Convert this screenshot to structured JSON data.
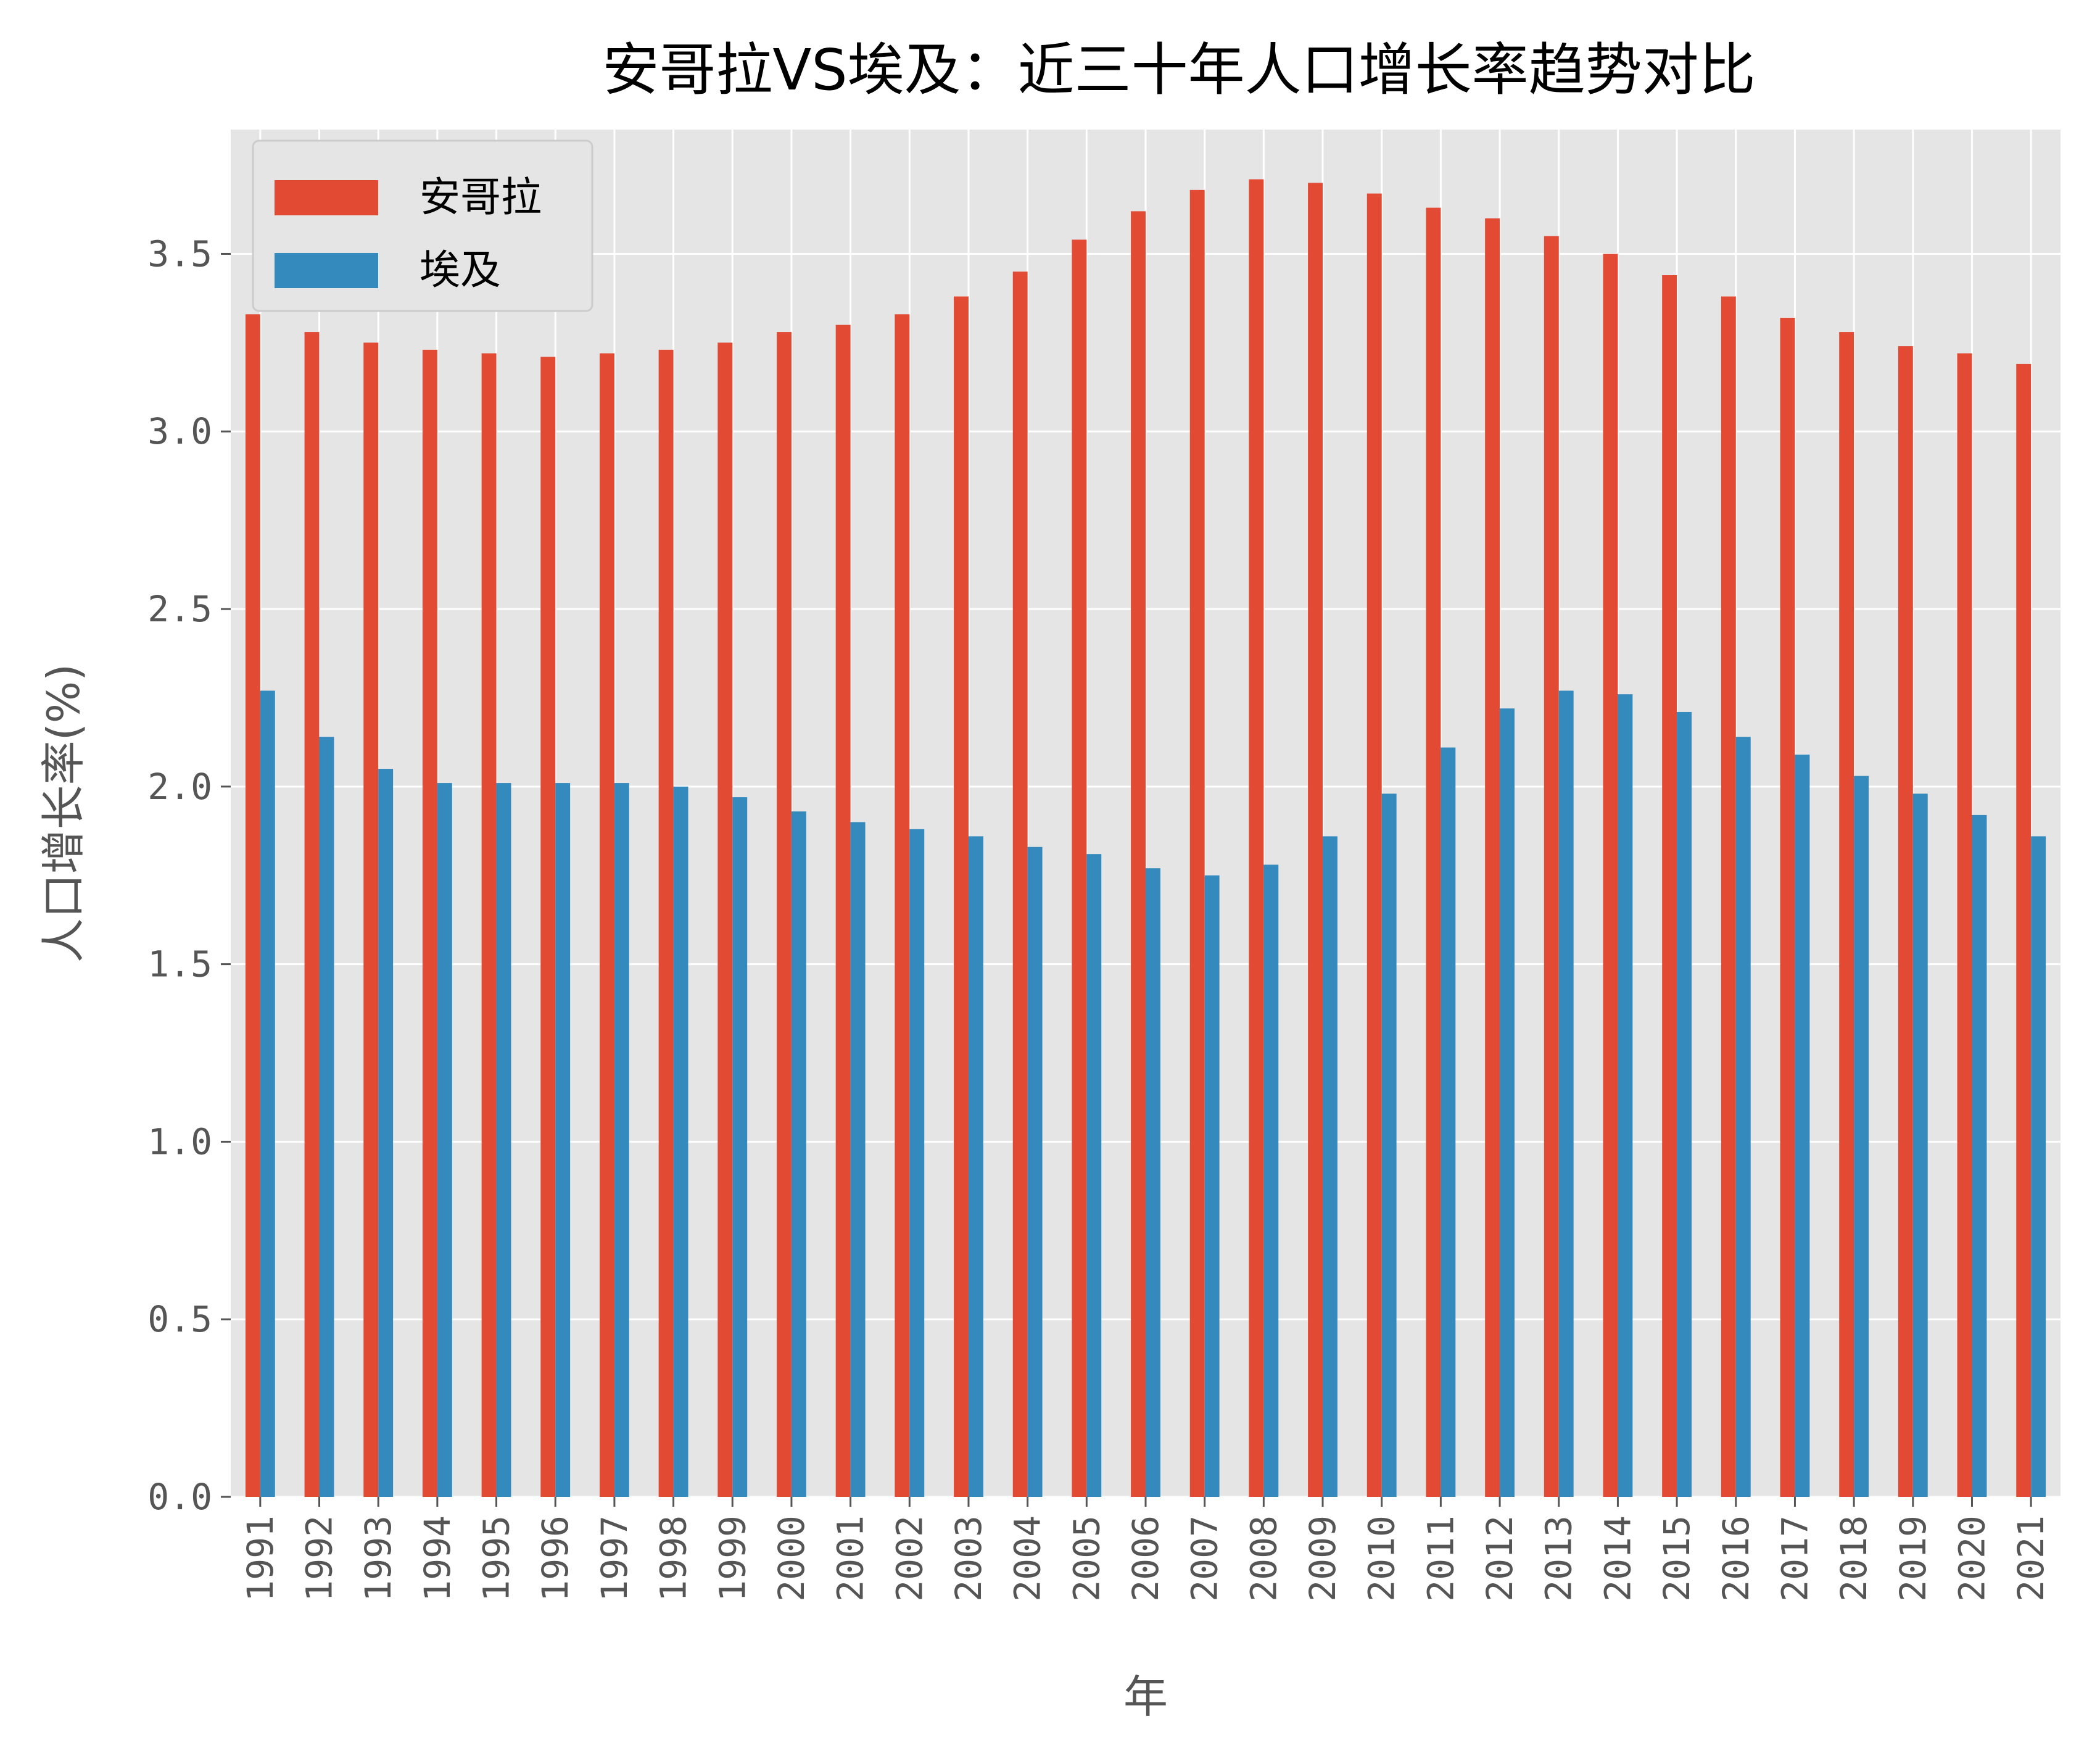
{
  "chart_data": {
    "type": "bar",
    "title": "安哥拉VS埃及：近三十年人口增长率趋势对比",
    "xlabel": "年",
    "ylabel": "人口增长率(%)",
    "ylim": [
      0,
      3.85
    ],
    "yticks": [
      "0.0",
      "0.5",
      "1.0",
      "1.5",
      "2.0",
      "2.5",
      "3.0",
      "3.5"
    ],
    "grid": true,
    "legend_position": "top-left",
    "categories": [
      "1991",
      "1992",
      "1993",
      "1994",
      "1995",
      "1996",
      "1997",
      "1998",
      "1999",
      "2000",
      "2001",
      "2002",
      "2003",
      "2004",
      "2005",
      "2006",
      "2007",
      "2008",
      "2009",
      "2010",
      "2011",
      "2012",
      "2013",
      "2014",
      "2015",
      "2016",
      "2017",
      "2018",
      "2019",
      "2020",
      "2021"
    ],
    "series": [
      {
        "name": "安哥拉",
        "color": "#E24A33",
        "values": [
          3.33,
          3.28,
          3.25,
          3.23,
          3.22,
          3.21,
          3.22,
          3.23,
          3.25,
          3.28,
          3.3,
          3.33,
          3.38,
          3.45,
          3.54,
          3.62,
          3.68,
          3.71,
          3.7,
          3.67,
          3.63,
          3.6,
          3.55,
          3.5,
          3.44,
          3.38,
          3.32,
          3.28,
          3.24,
          3.22,
          3.19
        ]
      },
      {
        "name": "埃及",
        "color": "#348ABD",
        "values": [
          2.27,
          2.14,
          2.05,
          2.01,
          2.01,
          2.01,
          2.01,
          2.0,
          1.97,
          1.93,
          1.9,
          1.88,
          1.86,
          1.83,
          1.81,
          1.77,
          1.75,
          1.78,
          1.86,
          1.98,
          2.11,
          2.22,
          2.27,
          2.26,
          2.21,
          2.14,
          2.09,
          2.03,
          1.98,
          1.92,
          1.86
        ]
      }
    ]
  }
}
